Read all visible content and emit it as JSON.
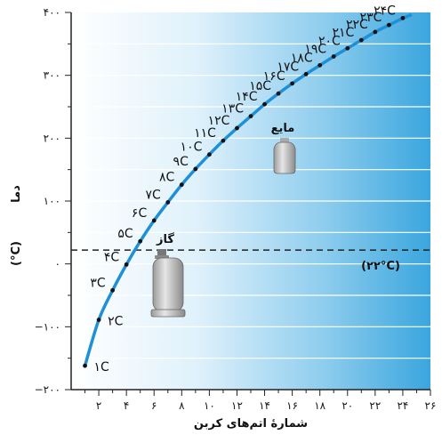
{
  "chart_data": {
    "type": "line",
    "xlabel": "شمارهٔ اتم‌های کربن",
    "ylabel": "دما",
    "ylabel_unit": "(°C)",
    "xlim": [
      0,
      26
    ],
    "ylim": [
      -200,
      400
    ],
    "x_ticks": [
      2,
      4,
      6,
      8,
      10,
      12,
      14,
      16,
      18,
      20,
      22,
      24,
      26
    ],
    "x_tick_labels": [
      "۲",
      "۴",
      "۶",
      "۸",
      "۱۰",
      "۱۲",
      "۱۴",
      "۱۶",
      "۱۸",
      "۲۰",
      "۲۲",
      "۲۴",
      "۲۶"
    ],
    "y_ticks": [
      -200,
      -100,
      0,
      100,
      200,
      300,
      400
    ],
    "y_tick_labels": [
      "−۲۰۰",
      "−۱۰۰",
      "۰",
      "۱۰۰",
      "۲۰۰",
      "۳۰۰",
      "۴۰۰"
    ],
    "grid": true,
    "points": [
      {
        "x": 1,
        "y": -162,
        "label": "۱C"
      },
      {
        "x": 2,
        "y": -89,
        "label": "۲C"
      },
      {
        "x": 3,
        "y": -42,
        "label": "۳C"
      },
      {
        "x": 4,
        "y": -1,
        "label": "۴C"
      },
      {
        "x": 5,
        "y": 36,
        "label": "۵C"
      },
      {
        "x": 6,
        "y": 69,
        "label": "۶C"
      },
      {
        "x": 7,
        "y": 98,
        "label": "۷C"
      },
      {
        "x": 8,
        "y": 126,
        "label": "۸C"
      },
      {
        "x": 9,
        "y": 151,
        "label": "۹C"
      },
      {
        "x": 10,
        "y": 174,
        "label": "۱۰C"
      },
      {
        "x": 11,
        "y": 196,
        "label": "۱۱C"
      },
      {
        "x": 12,
        "y": 216,
        "label": "۱۲C"
      },
      {
        "x": 13,
        "y": 235,
        "label": "۱۳C"
      },
      {
        "x": 14,
        "y": 254,
        "label": "۱۴C"
      },
      {
        "x": 15,
        "y": 271,
        "label": "۱۵C"
      },
      {
        "x": 16,
        "y": 287,
        "label": "۱۶C"
      },
      {
        "x": 17,
        "y": 302,
        "label": "۱۷C"
      },
      {
        "x": 18,
        "y": 316,
        "label": "۱۸C"
      },
      {
        "x": 19,
        "y": 330,
        "label": "۱۹C"
      },
      {
        "x": 20,
        "y": 343,
        "label": "۲۰C"
      },
      {
        "x": 21,
        "y": 356,
        "label": "۲۱C"
      },
      {
        "x": 22,
        "y": 369,
        "label": "۲۲C"
      },
      {
        "x": 23,
        "y": 380,
        "label": "۲۳C"
      },
      {
        "x": 24,
        "y": 391,
        "label": "۲۴C"
      }
    ],
    "reference_line": {
      "y": 22,
      "label": "(۲۲°C)",
      "style": "dashed"
    },
    "annotations": [
      {
        "text": "گاز",
        "icon": "gas-cylinder-icon"
      },
      {
        "text": "مایع",
        "icon": "liquid-jug-icon"
      }
    ],
    "colors": {
      "curve": "#1e90d6",
      "point": "#111111",
      "background_left": "#ffffff",
      "background_right": "#3aa6de",
      "grid": "#ffffff",
      "reference_line": "#222222"
    }
  }
}
